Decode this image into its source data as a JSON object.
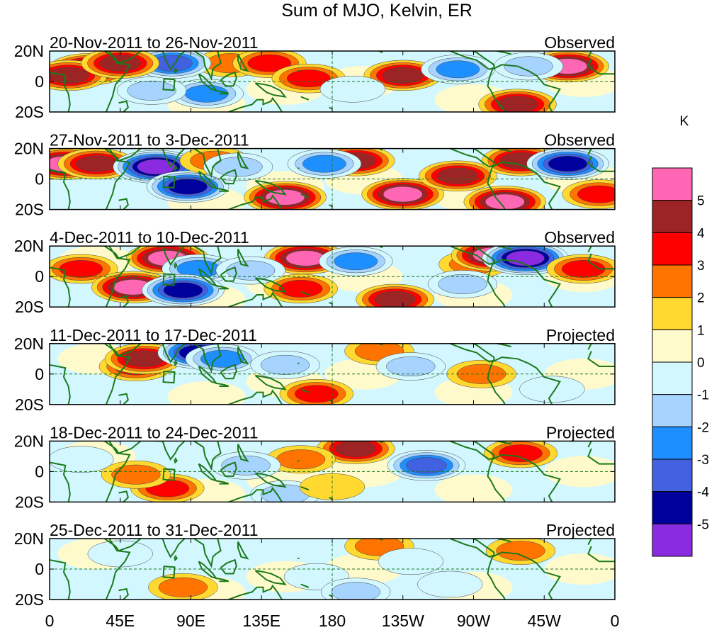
{
  "chart_data": {
    "type": "heatmap",
    "title": "Sum of MJO, Kelvin, ER",
    "x_axis": {
      "range_deg_east": [
        0,
        360
      ],
      "ticks": [
        {
          "lon": 0,
          "label": "0"
        },
        {
          "lon": 45,
          "label": "45E"
        },
        {
          "lon": 90,
          "label": "90E"
        },
        {
          "lon": 135,
          "label": "135E"
        },
        {
          "lon": 180,
          "label": "180"
        },
        {
          "lon": 225,
          "label": "135W"
        },
        {
          "lon": 270,
          "label": "90W"
        },
        {
          "lon": 315,
          "label": "45W"
        },
        {
          "lon": 360,
          "label": "0"
        }
      ]
    },
    "y_axis": {
      "range_deg_north": [
        -20,
        20
      ],
      "ticks": [
        {
          "lat": 20,
          "label": "20N"
        },
        {
          "lat": 0,
          "label": "0"
        },
        {
          "lat": -20,
          "label": "20S"
        }
      ]
    },
    "colorbar": {
      "unit": "K",
      "levels": [
        {
          "label": "5",
          "color": "#ff66b3"
        },
        {
          "label": "4",
          "color": "#9c2424"
        },
        {
          "label": "3",
          "color": "#ff0000"
        },
        {
          "label": "2",
          "color": "#ff7300"
        },
        {
          "label": "1",
          "color": "#ffd930"
        },
        {
          "label": "0",
          "color": "#fffacc"
        },
        {
          "label": "-1",
          "color": "#d2f7ff"
        },
        {
          "label": "-2",
          "color": "#a6d4ff"
        },
        {
          "label": "-3",
          "color": "#1e8fff"
        },
        {
          "label": "-4",
          "color": "#4161e0"
        },
        {
          "label": "-5",
          "color": "#00009c"
        },
        {
          "label": "",
          "color": "#8a2be2"
        }
      ]
    },
    "panels": [
      {
        "dates": "20-Nov-2011 to 26-Nov-2011",
        "status": "Observed",
        "anomalies": [
          {
            "lon": 25,
            "lat": 8,
            "value": 5
          },
          {
            "lon": 12,
            "lat": 4,
            "value": 4
          },
          {
            "lon": 115,
            "lat": 12,
            "value": 2
          },
          {
            "lon": 140,
            "lat": 12,
            "value": 3
          },
          {
            "lon": 165,
            "lat": 2,
            "value": 3
          },
          {
            "lon": 225,
            "lat": 4,
            "value": 4
          },
          {
            "lon": 298,
            "lat": -15,
            "value": 4
          },
          {
            "lon": 330,
            "lat": 10,
            "value": 5
          },
          {
            "lon": 100,
            "lat": -8,
            "value": -3
          },
          {
            "lon": 65,
            "lat": -6,
            "value": -2
          },
          {
            "lon": 78,
            "lat": 12,
            "value": -4
          },
          {
            "lon": 260,
            "lat": 8,
            "value": -3
          },
          {
            "lon": 305,
            "lat": 10,
            "value": -2
          },
          {
            "lon": 193,
            "lat": -5,
            "value": -1
          },
          {
            "lon": 45,
            "lat": 12,
            "value": 4
          }
        ]
      },
      {
        "dates": "27-Nov-2011 to 3-Dec-2011",
        "status": "Observed",
        "anomalies": [
          {
            "lon": 10,
            "lat": 10,
            "value": 5
          },
          {
            "lon": 30,
            "lat": 10,
            "value": 4
          },
          {
            "lon": 68,
            "lat": 8,
            "value": -6
          },
          {
            "lon": 88,
            "lat": -5,
            "value": -5
          },
          {
            "lon": 105,
            "lat": 12,
            "value": 2
          },
          {
            "lon": 150,
            "lat": -12,
            "value": 5
          },
          {
            "lon": 195,
            "lat": 12,
            "value": 4
          },
          {
            "lon": 225,
            "lat": -10,
            "value": 5
          },
          {
            "lon": 260,
            "lat": 2,
            "value": 4
          },
          {
            "lon": 300,
            "lat": 12,
            "value": 4
          },
          {
            "lon": 290,
            "lat": -15,
            "value": 5
          },
          {
            "lon": 330,
            "lat": 10,
            "value": -5
          },
          {
            "lon": 175,
            "lat": 10,
            "value": -3
          },
          {
            "lon": 120,
            "lat": 8,
            "value": -2
          },
          {
            "lon": 350,
            "lat": -10,
            "value": 3
          }
        ]
      },
      {
        "dates": "4-Dec-2011 to 10-Dec-2011",
        "status": "Observed",
        "anomalies": [
          {
            "lon": 20,
            "lat": 5,
            "value": 3
          },
          {
            "lon": 53,
            "lat": -7,
            "value": 5
          },
          {
            "lon": 75,
            "lat": 12,
            "value": 5
          },
          {
            "lon": 95,
            "lat": 5,
            "value": -3
          },
          {
            "lon": 85,
            "lat": -9,
            "value": -5
          },
          {
            "lon": 163,
            "lat": 12,
            "value": 5
          },
          {
            "lon": 195,
            "lat": 10,
            "value": -3
          },
          {
            "lon": 160,
            "lat": -8,
            "value": 3
          },
          {
            "lon": 220,
            "lat": -15,
            "value": 4
          },
          {
            "lon": 270,
            "lat": 8,
            "value": 2
          },
          {
            "lon": 282,
            "lat": 14,
            "value": 5
          },
          {
            "lon": 303,
            "lat": 12,
            "value": -6
          },
          {
            "lon": 340,
            "lat": 5,
            "value": 3
          },
          {
            "lon": 263,
            "lat": -5,
            "value": -2
          },
          {
            "lon": 128,
            "lat": 4,
            "value": -2
          }
        ]
      },
      {
        "dates": "11-Dec-2011 to 17-Dec-2011",
        "status": "Projected",
        "anomalies": [
          {
            "lon": 55,
            "lat": 5,
            "value": 3
          },
          {
            "lon": 60,
            "lat": 10,
            "value": 4
          },
          {
            "lon": 95,
            "lat": 14,
            "value": -5
          },
          {
            "lon": 110,
            "lat": 10,
            "value": -3
          },
          {
            "lon": 170,
            "lat": -13,
            "value": 3
          },
          {
            "lon": 210,
            "lat": 15,
            "value": 2
          },
          {
            "lon": 275,
            "lat": 0,
            "value": 2
          },
          {
            "lon": 150,
            "lat": 6,
            "value": -2
          },
          {
            "lon": 230,
            "lat": 5,
            "value": -2
          },
          {
            "lon": 320,
            "lat": -10,
            "value": -1
          }
        ]
      },
      {
        "dates": "18-Dec-2011 to 24-Dec-2011",
        "status": "Projected",
        "anomalies": [
          {
            "lon": 75,
            "lat": -11,
            "value": 3
          },
          {
            "lon": 55,
            "lat": -2,
            "value": 2
          },
          {
            "lon": 195,
            "lat": 15,
            "value": 4
          },
          {
            "lon": 160,
            "lat": 8,
            "value": 2
          },
          {
            "lon": 300,
            "lat": 12,
            "value": 3
          },
          {
            "lon": 240,
            "lat": 4,
            "value": -4
          },
          {
            "lon": 125,
            "lat": 4,
            "value": -2
          },
          {
            "lon": 20,
            "lat": 8,
            "value": -1
          },
          {
            "lon": 150,
            "lat": -15,
            "value": -2
          },
          {
            "lon": 180,
            "lat": -10,
            "value": 1
          }
        ]
      },
      {
        "dates": "25-Dec-2011 to 31-Dec-2011",
        "status": "Projected",
        "anomalies": [
          {
            "lon": 85,
            "lat": -12,
            "value": 2
          },
          {
            "lon": 210,
            "lat": 15,
            "value": 2
          },
          {
            "lon": 300,
            "lat": 12,
            "value": 2
          },
          {
            "lon": 170,
            "lat": -5,
            "value": -1
          },
          {
            "lon": 230,
            "lat": 5,
            "value": -1
          },
          {
            "lon": 45,
            "lat": 10,
            "value": -1
          },
          {
            "lon": 195,
            "lat": -15,
            "value": -2
          },
          {
            "lon": 255,
            "lat": -10,
            "value": -1
          }
        ]
      }
    ]
  }
}
